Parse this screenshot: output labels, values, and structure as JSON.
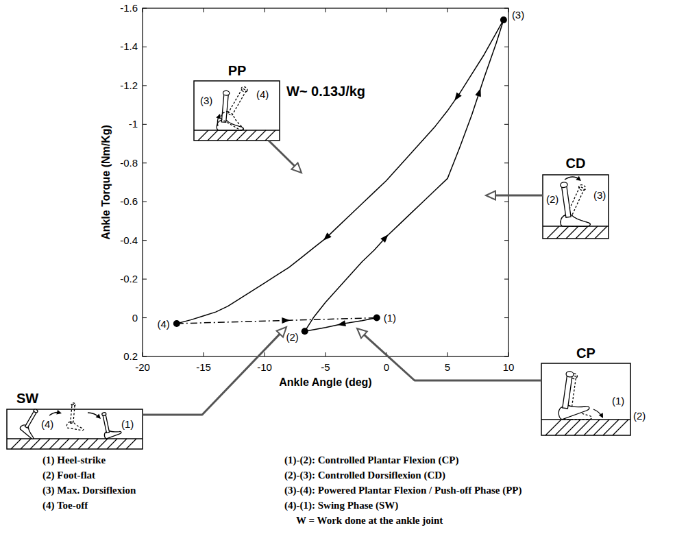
{
  "chart_data": {
    "type": "line",
    "x_label": "Ankle Angle (deg)",
    "y_label": "Ankle Torque (Nm/Kg)",
    "xlim": [
      -20,
      10
    ],
    "xticks": [
      -20,
      -15,
      -10,
      -5,
      0,
      5,
      10
    ],
    "ylim": [
      0.2,
      -1.6
    ],
    "yticks": [
      0.2,
      0,
      -0.2,
      -0.4,
      -0.6,
      -0.8,
      -1,
      -1.2,
      -1.4,
      -1.6
    ],
    "grid": false,
    "annotation": "W~ 0.13J/kg",
    "footnote": "W = Work done at the ankle joint",
    "series": [
      {
        "name": "(1)-(2): Controlled Plantar Flexion (CP)",
        "color": "#000000",
        "line_style": "solid",
        "inset": {
          "title": "CP",
          "labels": [
            "(1)",
            "(2)"
          ]
        },
        "x": [
          -0.8,
          -2,
          -3.5,
          -5,
          -6.7
        ],
        "values": [
          0,
          0.015,
          0.03,
          0.05,
          0.07
        ]
      },
      {
        "name": "(2)-(3): Controlled Dorsiflexion (CD)",
        "color": "#000000",
        "line_style": "solid",
        "inset": {
          "title": "CD",
          "labels": [
            "(2)",
            "(3)"
          ]
        },
        "x": [
          -6.7,
          -6,
          -5,
          -4,
          -3,
          -2,
          -1,
          0,
          1,
          2,
          3,
          4,
          5,
          6,
          7,
          8,
          9,
          9.6
        ],
        "values": [
          0.07,
          0,
          -0.08,
          -0.15,
          -0.22,
          -0.29,
          -0.35,
          -0.42,
          -0.48,
          -0.54,
          -0.6,
          -0.66,
          -0.72,
          -0.88,
          -1.05,
          -1.24,
          -1.42,
          -1.54
        ]
      },
      {
        "name": "(3)-(4): Powered Plantar Flexion / Push-off Phase (PP)",
        "color": "#000000",
        "line_style": "solid",
        "inset": {
          "title": "PP",
          "labels": [
            "(3)",
            "(4)"
          ]
        },
        "x": [
          9.6,
          8,
          7,
          6,
          5,
          4,
          3,
          2,
          1,
          0,
          -1,
          -2,
          -3,
          -4,
          -5,
          -6,
          -7,
          -8,
          -9,
          -10,
          -11,
          -12,
          -13,
          -14,
          -15,
          -16,
          -17.2
        ],
        "values": [
          -1.54,
          -1.36,
          -1.26,
          -1.16,
          -1.07,
          -0.99,
          -0.92,
          -0.85,
          -0.78,
          -0.71,
          -0.65,
          -0.59,
          -0.53,
          -0.47,
          -0.41,
          -0.36,
          -0.31,
          -0.26,
          -0.22,
          -0.18,
          -0.14,
          -0.1,
          -0.06,
          -0.03,
          -0.01,
          0.01,
          0.03
        ]
      },
      {
        "name": "(4)-(1): Swing Phase (SW)",
        "color": "#000000",
        "line_style": "dashdot",
        "inset": {
          "title": "SW",
          "labels": [
            "(4)",
            "(1)"
          ]
        },
        "x": [
          -17.2,
          -0.8
        ],
        "values": [
          0.03,
          0
        ]
      }
    ],
    "events": [
      {
        "label": "(1)",
        "text": "(1) Heel-strike",
        "x": -0.8,
        "y": 0
      },
      {
        "label": "(2)",
        "text": "(2) Foot-flat",
        "x": -6.7,
        "y": 0.07
      },
      {
        "label": "(3)",
        "text": "(3) Max. Dorsiflexion",
        "x": 9.6,
        "y": -1.54
      },
      {
        "label": "(4)",
        "text": "(4) Toe-off",
        "x": -17.2,
        "y": 0.03
      }
    ]
  }
}
